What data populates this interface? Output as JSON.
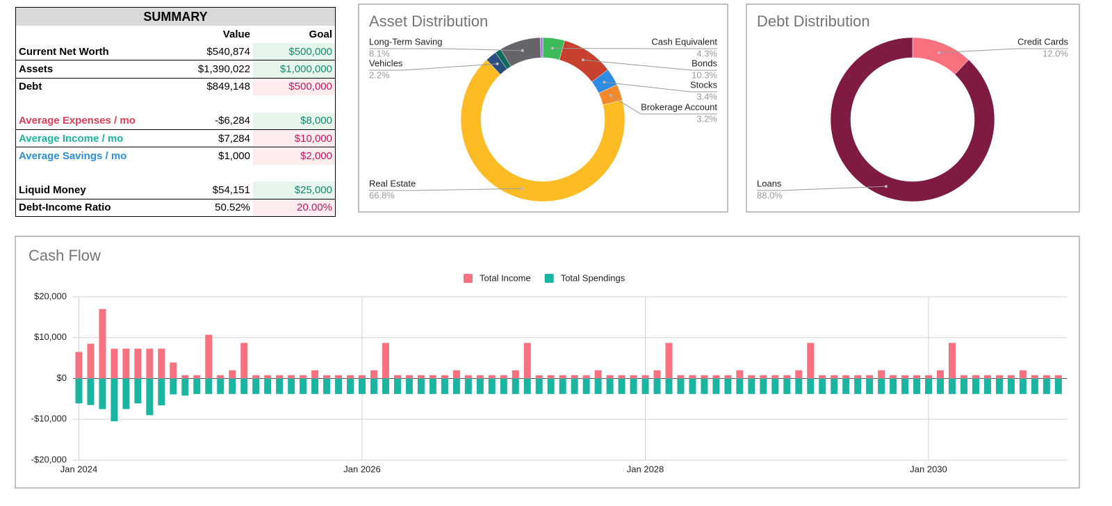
{
  "summary": {
    "title": "SUMMARY",
    "columns": [
      "Value",
      "Goal"
    ],
    "rows": [
      [
        "Current Net Worth",
        "$540,874",
        "$500,000"
      ],
      [
        "Assets",
        "$1,390,022",
        "$1,000,000"
      ],
      [
        "Debt",
        "$849,148",
        "$500,000"
      ],
      [
        "Average Expenses / mo",
        "-$6,284",
        "$8,000"
      ],
      [
        "Average Income / mo",
        "$7,284",
        "$10,000"
      ],
      [
        "Average Savings / mo",
        "$1,000",
        "$2,000"
      ],
      [
        "Liquid Money",
        "$54,151",
        "$25,000"
      ],
      [
        "Debt-Income Ratio",
        "50.52%",
        "20.00%"
      ]
    ]
  },
  "chart_data": [
    {
      "type": "donut",
      "title": "Asset Distribution",
      "categories": [
        "Cash Equivalent",
        "Bonds",
        "Stocks",
        "Brokerage Account",
        "Real Estate",
        "Vehicles",
        null,
        "Long-Term Saving",
        null
      ],
      "values": [
        4.3,
        10.3,
        3.4,
        3.2,
        66.8,
        2.2,
        1.2,
        8.1,
        0.5
      ],
      "value_labels": [
        "4.3%",
        "10.3%",
        "3.4%",
        "3.2%",
        "66.8%",
        "2.2%",
        null,
        "8.1%",
        null
      ],
      "colors": [
        "#3dba5a",
        "#c8412e",
        "#2e8de0",
        "#f5882a",
        "#fdbb24",
        "#2b4c7e",
        "#0e6b5c",
        "#666369",
        "#9b7fd4"
      ]
    },
    {
      "type": "donut",
      "title": "Debt Distribution",
      "categories": [
        "Credit Cards",
        "Loans"
      ],
      "values": [
        12.0,
        88.0
      ],
      "value_labels": [
        "12.0%",
        "88.0%"
      ],
      "colors": [
        "#f7717f",
        "#7f1a42"
      ]
    },
    {
      "type": "bar",
      "title": "Cash Flow",
      "categories": [
        "Jan 2024",
        null,
        null,
        null,
        null,
        null,
        null,
        null,
        null,
        null,
        null,
        null,
        null,
        null,
        null,
        null,
        null,
        null,
        null,
        null,
        null,
        null,
        null,
        null,
        "Jan 2026",
        null,
        null,
        null,
        null,
        null,
        null,
        null,
        null,
        null,
        null,
        null,
        null,
        null,
        null,
        null,
        null,
        null,
        null,
        null,
        null,
        null,
        null,
        null,
        "Jan 2028",
        null,
        null,
        null,
        null,
        null,
        null,
        null,
        null,
        null,
        null,
        null,
        null,
        null,
        null,
        null,
        null,
        null,
        null,
        null,
        null,
        null,
        null,
        null,
        "Jan 2030",
        null,
        null,
        null,
        null,
        null,
        null,
        null,
        null,
        null,
        null,
        null
      ],
      "series": [
        {
          "name": "Total Income",
          "color": "#f7717f",
          "values": [
            6500,
            8500,
            17000,
            7300,
            7300,
            7300,
            7300,
            7300,
            3900,
            800,
            800,
            10700,
            800,
            2000,
            8700,
            800,
            800,
            800,
            800,
            800,
            2000,
            800,
            800,
            800,
            800,
            2000,
            8700,
            800,
            800,
            800,
            800,
            800,
            2000,
            800,
            800,
            800,
            800,
            2000,
            8700,
            800,
            800,
            800,
            800,
            800,
            2000,
            800,
            800,
            800,
            800,
            2000,
            8700,
            800,
            800,
            800,
            800,
            800,
            2000,
            800,
            800,
            800,
            800,
            2000,
            8700,
            800,
            800,
            800,
            800,
            800,
            2000,
            800,
            800,
            800,
            800,
            2000,
            8700,
            800,
            800,
            800,
            800,
            800,
            2000,
            800,
            800,
            800
          ]
        },
        {
          "name": "Total Spendings",
          "color": "#1ab5a0",
          "values": [
            -6100,
            -6500,
            -7500,
            -10500,
            -7500,
            -6100,
            -9000,
            -6600,
            -3900,
            -4200,
            -3800,
            -3800,
            -3800,
            -3800,
            -3800,
            -3800,
            -3800,
            -3800,
            -3800,
            -3800,
            -3800,
            -3800,
            -3800,
            -3800,
            -3800,
            -3800,
            -3800,
            -3800,
            -3800,
            -3800,
            -3800,
            -3800,
            -3800,
            -3800,
            -3800,
            -3800,
            -3800,
            -3800,
            -3800,
            -3800,
            -3800,
            -3800,
            -3800,
            -3800,
            -3800,
            -3800,
            -3800,
            -3800,
            -3800,
            -3800,
            -3800,
            -3800,
            -3800,
            -3800,
            -3800,
            -3800,
            -3800,
            -3800,
            -3800,
            -3800,
            -3800,
            -3800,
            -3800,
            -3800,
            -3800,
            -3800,
            -3800,
            -3800,
            -3800,
            -3800,
            -3800,
            -3800,
            -3800,
            -3800,
            -3800,
            -3800,
            -3800,
            -3800,
            -3800,
            -3800,
            -3800,
            -3800,
            -3800,
            -3800
          ]
        }
      ],
      "ylim": [
        -20000,
        20000
      ],
      "yticks": [
        {
          "value": -20000,
          "label": "-$20,000"
        },
        {
          "value": -10000,
          "label": "-$10,000"
        },
        {
          "value": 0,
          "label": "$0"
        },
        {
          "value": 10000,
          "label": "$10,000"
        },
        {
          "value": 20000,
          "label": "$20,000"
        }
      ],
      "grid": true,
      "legend": "top"
    }
  ]
}
